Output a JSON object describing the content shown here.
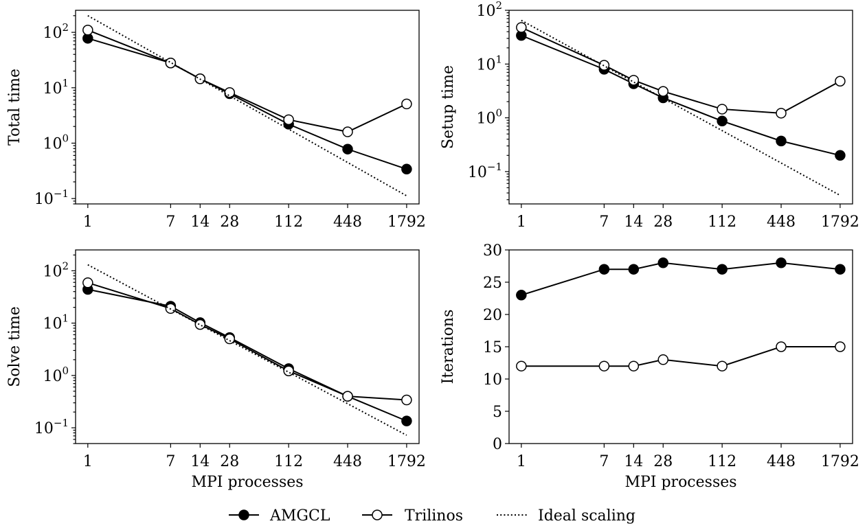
{
  "legend": [
    {
      "name": "AMGCL",
      "marker": "filled-circle"
    },
    {
      "name": "Trilinos",
      "marker": "open-circle"
    },
    {
      "name": "Ideal scaling",
      "marker": "dotted-line"
    }
  ],
  "chart_data": [
    {
      "type": "line",
      "id": "total",
      "ylabel": "Total time",
      "xlabel": "",
      "xscale": "log",
      "yscale": "log",
      "x": [
        1,
        7,
        14,
        28,
        112,
        448,
        1792
      ],
      "xticks": [
        "1",
        "7",
        "14",
        "28",
        "112",
        "448",
        "1792"
      ],
      "ylim": [
        0.08,
        250
      ],
      "yticks": [
        0.1,
        1,
        10,
        100
      ],
      "yticklabels": [
        {
          "base": "10",
          "exp": "−1"
        },
        {
          "base": "10",
          "exp": "0"
        },
        {
          "base": "10",
          "exp": "1"
        },
        {
          "base": "10",
          "exp": "2"
        }
      ],
      "series": [
        {
          "name": "AMGCL",
          "marker": "filled",
          "values": [
            78,
            28,
            14.5,
            7.8,
            2.2,
            0.78,
            0.34
          ]
        },
        {
          "name": "Trilinos",
          "marker": "open",
          "values": [
            110,
            28,
            14.5,
            8.2,
            2.65,
            1.6,
            5.1
          ]
        },
        {
          "name": "Ideal scaling",
          "marker": "none",
          "x": [
            1,
            1792
          ],
          "values": [
            200,
            0.112
          ]
        }
      ]
    },
    {
      "type": "line",
      "id": "setup",
      "ylabel": "Setup time",
      "xlabel": "",
      "xscale": "log",
      "yscale": "log",
      "x": [
        1,
        7,
        14,
        28,
        112,
        448,
        1792
      ],
      "xticks": [
        "1",
        "7",
        "14",
        "28",
        "112",
        "448",
        "1792"
      ],
      "ylim": [
        0.025,
        100
      ],
      "yticks": [
        0.1,
        1,
        10,
        100
      ],
      "yticklabels": [
        {
          "base": "10",
          "exp": "−1"
        },
        {
          "base": "10",
          "exp": "0"
        },
        {
          "base": "10",
          "exp": "1"
        },
        {
          "base": "10",
          "exp": "2"
        }
      ],
      "series": [
        {
          "name": "AMGCL",
          "marker": "filled",
          "values": [
            34,
            8,
            4.3,
            2.35,
            0.87,
            0.37,
            0.2
          ]
        },
        {
          "name": "Trilinos",
          "marker": "open",
          "values": [
            48,
            9.5,
            5.0,
            3.1,
            1.45,
            1.22,
            4.8
          ]
        },
        {
          "name": "Ideal scaling",
          "marker": "none",
          "x": [
            1,
            1792
          ],
          "values": [
            65,
            0.036
          ]
        }
      ]
    },
    {
      "type": "line",
      "id": "solve",
      "ylabel": "Solve time",
      "xlabel": "MPI processes",
      "xscale": "log",
      "yscale": "log",
      "x": [
        1,
        7,
        14,
        28,
        112,
        448,
        1792
      ],
      "xticks": [
        "1",
        "7",
        "14",
        "28",
        "112",
        "448",
        "1792"
      ],
      "ylim": [
        0.05,
        250
      ],
      "yticks": [
        0.1,
        1,
        10,
        100
      ],
      "yticklabels": [
        {
          "base": "10",
          "exp": "−1"
        },
        {
          "base": "10",
          "exp": "0"
        },
        {
          "base": "10",
          "exp": "1"
        },
        {
          "base": "10",
          "exp": "2"
        }
      ],
      "series": [
        {
          "name": "AMGCL",
          "marker": "filled",
          "values": [
            44,
            21,
            10.2,
            5.3,
            1.35,
            0.4,
            0.135
          ]
        },
        {
          "name": "Trilinos",
          "marker": "open",
          "values": [
            59,
            19,
            9.4,
            5.0,
            1.22,
            0.4,
            0.34
          ]
        },
        {
          "name": "Ideal scaling",
          "marker": "none",
          "x": [
            1,
            1792
          ],
          "values": [
            130,
            0.072
          ]
        }
      ]
    },
    {
      "type": "line",
      "id": "iterations",
      "ylabel": "Iterations",
      "xlabel": "MPI processes",
      "xscale": "log",
      "yscale": "linear",
      "x": [
        1,
        7,
        14,
        28,
        112,
        448,
        1792
      ],
      "xticks": [
        "1",
        "7",
        "14",
        "28",
        "112",
        "448",
        "1792"
      ],
      "ylim": [
        0,
        30
      ],
      "yticks": [
        0,
        5,
        10,
        15,
        20,
        25,
        30
      ],
      "yticklabels": [
        "0",
        "5",
        "10",
        "15",
        "20",
        "25",
        "30"
      ],
      "series": [
        {
          "name": "AMGCL",
          "marker": "filled",
          "values": [
            23,
            27,
            27,
            28,
            27,
            28,
            27
          ]
        },
        {
          "name": "Trilinos",
          "marker": "open",
          "values": [
            12,
            12,
            12,
            13,
            12,
            15,
            15
          ]
        }
      ]
    }
  ]
}
